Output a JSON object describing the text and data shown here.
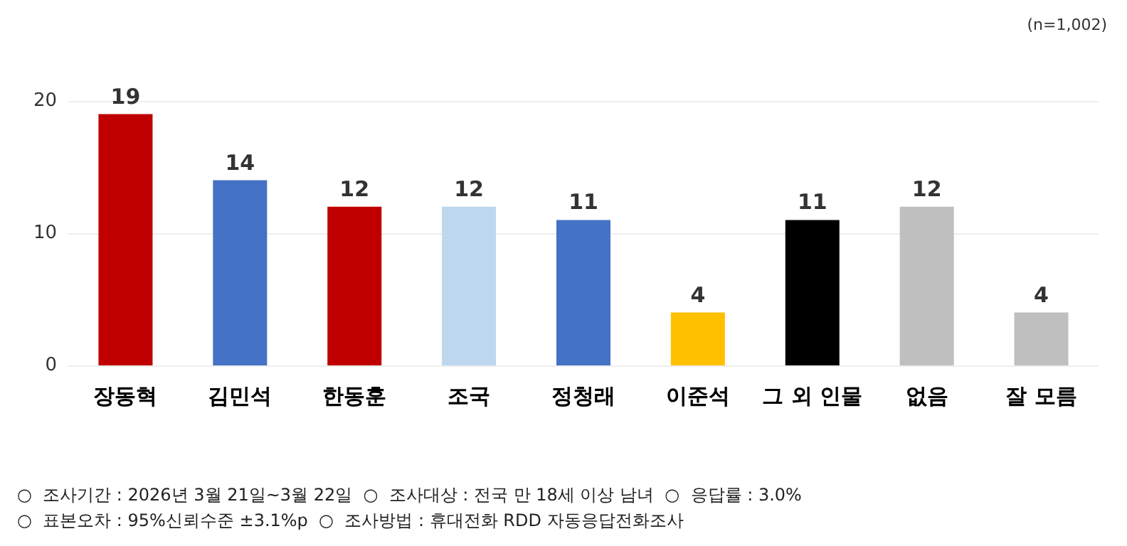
{
  "chart_data": {
    "type": "bar",
    "categories": [
      "장동혁",
      "김민석",
      "한동훈",
      "조국",
      "정청래",
      "이준석",
      "그 외 인물",
      "없음",
      "잘 모름"
    ],
    "values": [
      19,
      14,
      12,
      12,
      11,
      4,
      11,
      12,
      4
    ],
    "colors": [
      "#c00000",
      "#4472c4",
      "#c00000",
      "#bdd7ee",
      "#4472c4",
      "#ffc000",
      "#000000",
      "#bfbfbf",
      "#bfbfbf"
    ],
    "ylim": [
      0,
      20
    ],
    "yticks": [
      0,
      10,
      20
    ],
    "grid": "y",
    "data_labels": true,
    "annotations": [
      "(n=1,002)",
      "○  조사기간 : 2026년 3월 21일~3월 22일  ○  조사대상 : 전국 만 18세 이상 남녀  ○  응답률 : 3.0%",
      "○  표본오차 : 95%신뢰수준 ±3.1%p  ○  조사방법 : 휴대전화 RDD 자동응답전화조사"
    ]
  }
}
